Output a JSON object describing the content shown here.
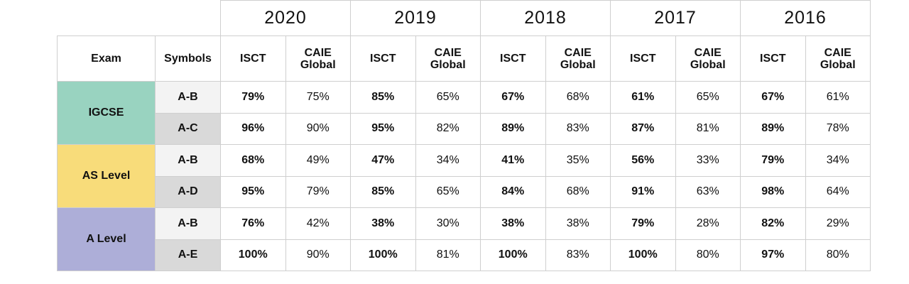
{
  "chart_data": {
    "type": "table",
    "years": [
      "2020",
      "2019",
      "2018",
      "2017",
      "2016"
    ],
    "header": {
      "exam": "Exam",
      "symbols": "Symbols",
      "isct": "ISCT",
      "caie": "CAIE Global"
    },
    "exams": [
      {
        "name": "IGCSE",
        "color": "#99d3c0",
        "rows": [
          {
            "symbol": "A-B",
            "shade": "light",
            "values": [
              [
                "79%",
                "75%"
              ],
              [
                "85%",
                "65%"
              ],
              [
                "67%",
                "68%"
              ],
              [
                "61%",
                "65%"
              ],
              [
                "67%",
                "61%"
              ]
            ]
          },
          {
            "symbol": "A-C",
            "shade": "dark",
            "values": [
              [
                "96%",
                "90%"
              ],
              [
                "95%",
                "82%"
              ],
              [
                "89%",
                "83%"
              ],
              [
                "87%",
                "81%"
              ],
              [
                "89%",
                "78%"
              ]
            ]
          }
        ]
      },
      {
        "name": "AS Level",
        "color": "#f8dc7a",
        "rows": [
          {
            "symbol": "A-B",
            "shade": "light",
            "values": [
              [
                "68%",
                "49%"
              ],
              [
                "47%",
                "34%"
              ],
              [
                "41%",
                "35%"
              ],
              [
                "56%",
                "33%"
              ],
              [
                "79%",
                "34%"
              ]
            ]
          },
          {
            "symbol": "A-D",
            "shade": "dark",
            "values": [
              [
                "95%",
                "79%"
              ],
              [
                "85%",
                "65%"
              ],
              [
                "84%",
                "68%"
              ],
              [
                "91%",
                "63%"
              ],
              [
                "98%",
                "64%"
              ]
            ]
          }
        ]
      },
      {
        "name": "A Level",
        "color": "#adaed8",
        "rows": [
          {
            "symbol": "A-B",
            "shade": "light",
            "values": [
              [
                "76%",
                "42%"
              ],
              [
                "38%",
                "30%"
              ],
              [
                "38%",
                "38%"
              ],
              [
                "79%",
                "28%"
              ],
              [
                "82%",
                "29%"
              ]
            ]
          },
          {
            "symbol": "A-E",
            "shade": "dark",
            "values": [
              [
                "100%",
                "90%"
              ],
              [
                "100%",
                "81%"
              ],
              [
                "100%",
                "83%"
              ],
              [
                "100%",
                "80%"
              ],
              [
                "97%",
                "80%"
              ]
            ]
          }
        ]
      }
    ]
  }
}
